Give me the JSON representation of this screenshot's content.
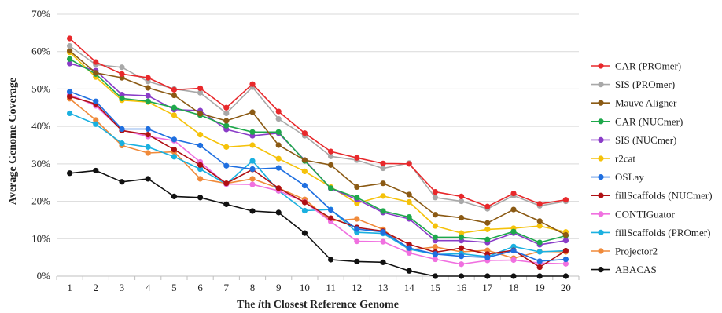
{
  "chart_data": {
    "type": "line",
    "title": "",
    "xlabel": "The ith Closest Reference Genome",
    "xlabel_parts": [
      "The ",
      "i",
      "th Closest Reference Genome"
    ],
    "ylabel": "Average Genome Coverage",
    "x": [
      1,
      2,
      3,
      4,
      5,
      6,
      7,
      8,
      9,
      10,
      11,
      12,
      13,
      14,
      15,
      16,
      17,
      18,
      19,
      20
    ],
    "ylim": [
      0,
      70
    ],
    "yticks": [
      "0%",
      "10%",
      "20%",
      "30%",
      "40%",
      "50%",
      "60%",
      "70%"
    ],
    "grid": "horizontal",
    "legend_position": "right",
    "series": [
      {
        "name": "CAR (PROmer)",
        "color": "#e8282b",
        "values": [
          63.5,
          57.2,
          54.0,
          53.0,
          49.8,
          50.2,
          45.0,
          51.3,
          44.0,
          38.2,
          33.3,
          31.6,
          30.1,
          30.0,
          22.5,
          21.3,
          18.6,
          22.1,
          19.3,
          20.4
        ]
      },
      {
        "name": "SIS (PROmer)",
        "color": "#a8a8a8",
        "values": [
          61.5,
          56.5,
          55.8,
          52.0,
          50.0,
          49.0,
          43.5,
          50.5,
          42.0,
          37.5,
          32.0,
          31.0,
          28.8,
          30.2,
          21.0,
          20.0,
          18.0,
          21.5,
          18.8,
          20.0
        ]
      },
      {
        "name": "Mauve Aligner",
        "color": "#8b5a14",
        "values": [
          60.2,
          54.3,
          53.0,
          50.3,
          48.3,
          43.4,
          41.5,
          43.8,
          35.0,
          31.0,
          29.7,
          23.8,
          24.8,
          21.8,
          16.4,
          15.6,
          14.2,
          17.8,
          14.7,
          11.0
        ]
      },
      {
        "name": "CAR (NUCmer)",
        "color": "#1ea84b",
        "values": [
          58.0,
          54.0,
          47.5,
          46.7,
          45.0,
          43.0,
          40.2,
          38.5,
          38.5,
          30.8,
          23.5,
          21.0,
          17.4,
          15.8,
          10.4,
          10.4,
          9.8,
          11.9,
          9.0,
          10.8
        ]
      },
      {
        "name": "SIS (NUCmer)",
        "color": "#8a3cc8",
        "values": [
          56.8,
          54.9,
          48.5,
          48.2,
          44.5,
          44.2,
          39.2,
          37.5,
          38.2,
          31.0,
          23.4,
          20.5,
          17.0,
          15.3,
          9.5,
          9.5,
          9.0,
          11.5,
          8.4,
          9.5
        ]
      },
      {
        "name": "r2cat",
        "color": "#f5c20a",
        "values": [
          59.8,
          53.2,
          47.0,
          46.5,
          43.0,
          37.8,
          34.5,
          35.0,
          31.4,
          28.0,
          23.8,
          19.5,
          21.4,
          19.8,
          13.4,
          11.5,
          12.5,
          12.8,
          13.4,
          11.8
        ]
      },
      {
        "name": "OSLay",
        "color": "#1f6fe0",
        "values": [
          49.3,
          46.7,
          39.3,
          39.3,
          36.5,
          34.9,
          29.5,
          28.6,
          28.9,
          24.2,
          17.7,
          12.6,
          11.8,
          7.5,
          5.9,
          5.3,
          5.0,
          6.8,
          4.0,
          4.5
        ]
      },
      {
        "name": "fillScaffolds (NUCmer)",
        "color": "#b01014",
        "values": [
          48.0,
          46.0,
          38.9,
          37.8,
          33.8,
          29.7,
          24.8,
          28.5,
          23.5,
          19.7,
          15.5,
          13.0,
          12.0,
          8.5,
          6.4,
          7.5,
          5.9,
          6.9,
          2.4,
          6.8
        ]
      },
      {
        "name": "CONTIGuator",
        "color": "#f070e0",
        "values": [
          48.5,
          45.5,
          39.0,
          37.3,
          36.2,
          30.5,
          24.6,
          24.5,
          22.8,
          19.8,
          14.6,
          9.3,
          9.2,
          6.2,
          4.5,
          3.2,
          4.2,
          4.3,
          3.5,
          3.3
        ]
      },
      {
        "name": "fillScaffolds (PROmer)",
        "color": "#1ab0e0",
        "values": [
          43.5,
          40.6,
          35.5,
          34.5,
          31.9,
          28.6,
          24.6,
          30.8,
          22.8,
          17.5,
          17.8,
          11.7,
          11.4,
          7.2,
          5.8,
          6.0,
          5.2,
          7.9,
          6.5,
          6.8
        ]
      },
      {
        "name": "Projector2",
        "color": "#f08a3a",
        "values": [
          47.4,
          41.7,
          34.9,
          32.9,
          33.2,
          26.0,
          24.8,
          26.0,
          23.5,
          20.5,
          14.8,
          15.3,
          12.5,
          7.0,
          7.8,
          6.5,
          6.9,
          4.8,
          6.6,
          6.5
        ]
      },
      {
        "name": "ABACAS",
        "color": "#111111",
        "values": [
          27.5,
          28.2,
          25.2,
          26.0,
          21.3,
          21.0,
          19.2,
          17.4,
          17.0,
          11.5,
          4.4,
          3.9,
          3.7,
          1.4,
          0,
          0,
          0,
          0,
          0,
          0
        ]
      }
    ]
  }
}
